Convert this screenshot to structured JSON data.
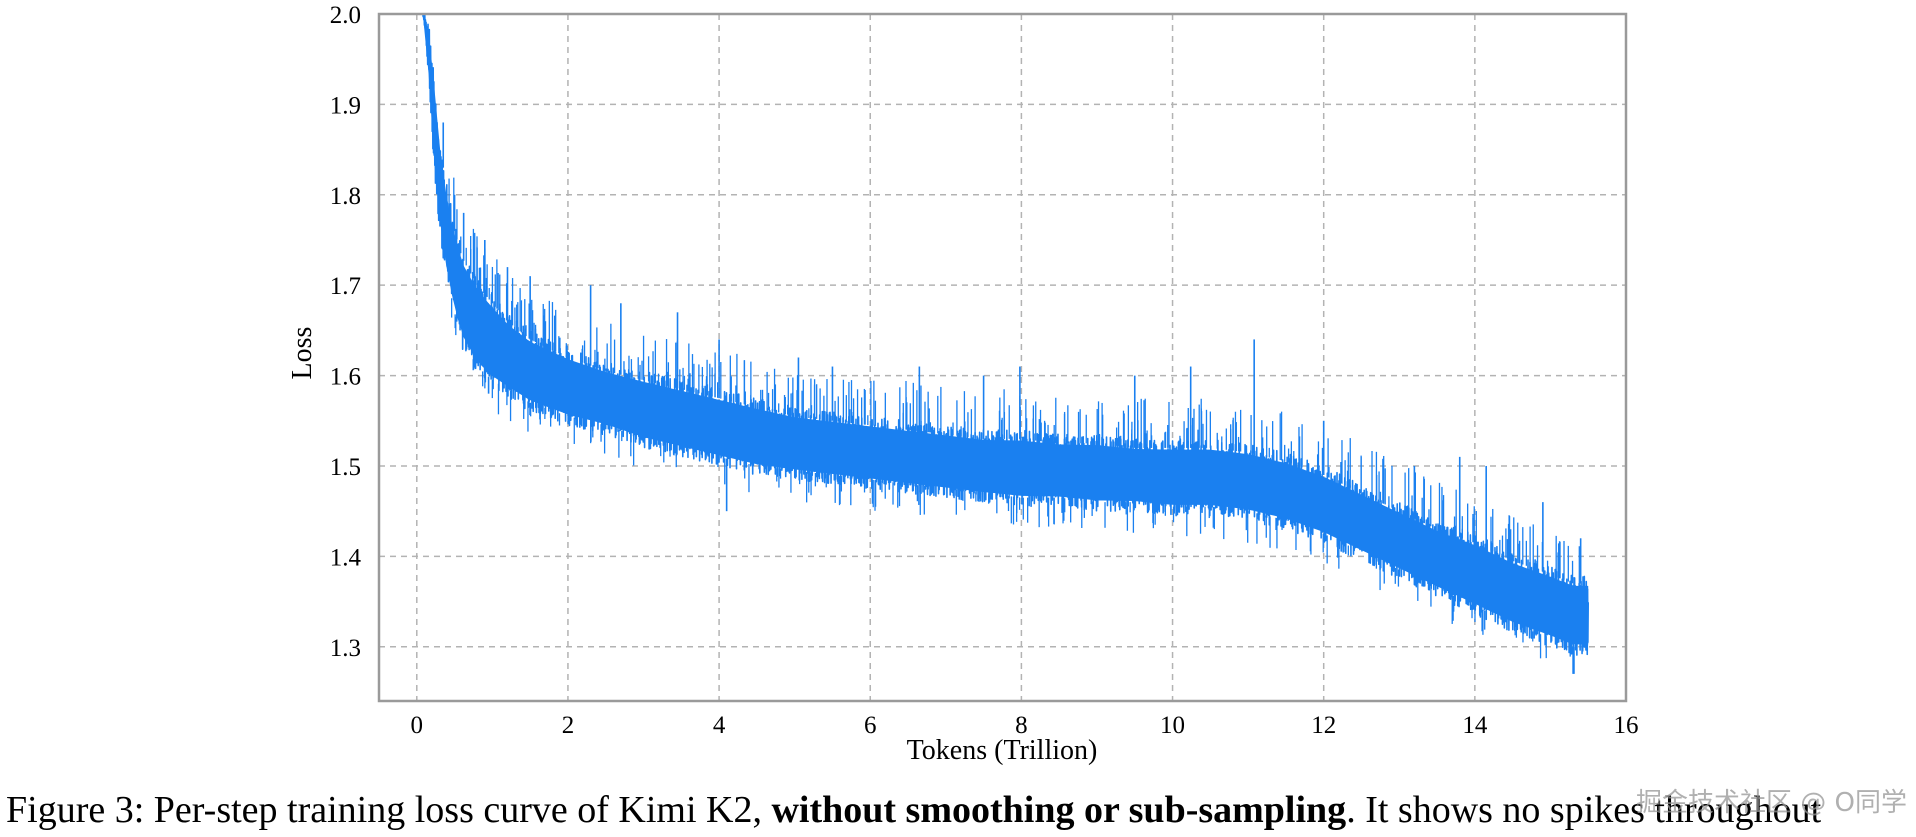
{
  "chart_data": {
    "type": "line",
    "title": "",
    "xlabel": "Tokens (Trillion)",
    "ylabel": "Loss",
    "xlim": [
      -0.5,
      16
    ],
    "ylim": [
      1.24,
      2.0
    ],
    "xticks": [
      0,
      2,
      4,
      6,
      8,
      10,
      12,
      14,
      16
    ],
    "yticks": [
      1.3,
      1.4,
      1.5,
      1.6,
      1.7,
      1.8,
      1.9,
      2.0
    ],
    "xtick_labels": [
      "0",
      "2",
      "4",
      "6",
      "8",
      "10",
      "12",
      "14",
      "16"
    ],
    "ytick_labels": [
      "1.3",
      "1.4",
      "1.5",
      "1.6",
      "1.7",
      "1.8",
      "1.9",
      "2.0"
    ],
    "grid": true,
    "legend": "none",
    "series": [
      {
        "name": "Per-step training loss",
        "color": "#1a80f0",
        "band_x": [
          0.08,
          0.12,
          0.16,
          0.2,
          0.25,
          0.3,
          0.4,
          0.5,
          0.6,
          0.8,
          1.0,
          1.2,
          1.5,
          2.0,
          2.5,
          3.0,
          3.5,
          4.0,
          4.5,
          5.0,
          5.5,
          6.0,
          6.5,
          7.0,
          7.5,
          8.0,
          8.5,
          9.0,
          9.5,
          10.0,
          10.5,
          11.0,
          11.5,
          12.0,
          12.5,
          13.0,
          13.5,
          14.0,
          14.5,
          15.0,
          15.3,
          15.5
        ],
        "band_upper": [
          2.0,
          2.0,
          1.99,
          1.96,
          1.92,
          1.87,
          1.81,
          1.77,
          1.74,
          1.71,
          1.69,
          1.67,
          1.65,
          1.63,
          1.615,
          1.605,
          1.595,
          1.585,
          1.575,
          1.565,
          1.56,
          1.555,
          1.55,
          1.545,
          1.54,
          1.54,
          1.535,
          1.535,
          1.53,
          1.53,
          1.53,
          1.525,
          1.515,
          1.5,
          1.48,
          1.46,
          1.44,
          1.425,
          1.405,
          1.39,
          1.38,
          1.38
        ],
        "band_lower": [
          2.0,
          1.97,
          1.92,
          1.86,
          1.8,
          1.76,
          1.7,
          1.66,
          1.63,
          1.6,
          1.585,
          1.575,
          1.56,
          1.545,
          1.535,
          1.52,
          1.51,
          1.5,
          1.49,
          1.485,
          1.48,
          1.475,
          1.47,
          1.465,
          1.46,
          1.455,
          1.455,
          1.45,
          1.45,
          1.445,
          1.445,
          1.44,
          1.43,
          1.415,
          1.395,
          1.375,
          1.355,
          1.335,
          1.315,
          1.3,
          1.29,
          1.29
        ],
        "spikes": [
          {
            "x": 0.35,
            "y": 1.88
          },
          {
            "x": 0.5,
            "y": 1.8
          },
          {
            "x": 0.62,
            "y": 1.78
          },
          {
            "x": 0.9,
            "y": 1.75
          },
          {
            "x": 1.2,
            "y": 1.72
          },
          {
            "x": 1.5,
            "y": 1.71
          },
          {
            "x": 2.3,
            "y": 1.7
          },
          {
            "x": 2.7,
            "y": 1.68
          },
          {
            "x": 3.45,
            "y": 1.67
          },
          {
            "x": 4.0,
            "y": 1.64
          },
          {
            "x": 5.05,
            "y": 1.62
          },
          {
            "x": 5.5,
            "y": 1.61
          },
          {
            "x": 6.65,
            "y": 1.61
          },
          {
            "x": 7.5,
            "y": 1.6
          },
          {
            "x": 7.98,
            "y": 1.61
          },
          {
            "x": 9.5,
            "y": 1.6
          },
          {
            "x": 10.24,
            "y": 1.61
          },
          {
            "x": 11.08,
            "y": 1.64
          },
          {
            "x": 12.0,
            "y": 1.55
          },
          {
            "x": 13.2,
            "y": 1.5
          },
          {
            "x": 13.8,
            "y": 1.51
          },
          {
            "x": 14.15,
            "y": 1.5
          },
          {
            "x": 14.9,
            "y": 1.46
          },
          {
            "x": 15.4,
            "y": 1.42
          }
        ],
        "dips": [
          {
            "x": 0.95,
            "y": 1.58
          },
          {
            "x": 4.1,
            "y": 1.45
          },
          {
            "x": 15.3,
            "y": 1.27
          }
        ]
      }
    ]
  },
  "caption": {
    "prefix": "Figure 3: Per-step training loss curve of Kimi K2, ",
    "bold": "without smoothing or sub-sampling",
    "suffix": ". It shows no spikes throughout"
  },
  "watermark": "掘金技术社区 @ O同学"
}
